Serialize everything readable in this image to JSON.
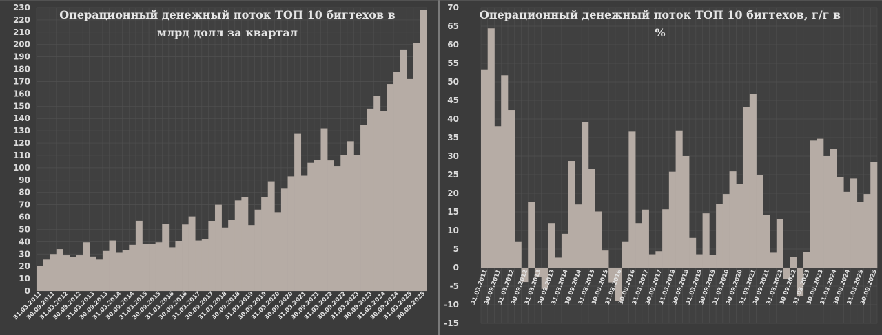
{
  "colors": {
    "background": "#3b3b3b",
    "plot_bg": "#404040",
    "grid": "#505050",
    "bar": "#b6aca5",
    "text": "#e2e2e2"
  },
  "chart_data": [
    {
      "type": "bar",
      "title_lines": [
        "Операционный денежный поток ТОП 10 бигтехов в",
        "млрд долл за квартал"
      ],
      "xlabel": "",
      "ylabel": "",
      "ylim": [
        0,
        230
      ],
      "ystep": 10,
      "grid": true,
      "legend": "none",
      "x_tick_labels": [
        "31.03.2011",
        "30.09.2011",
        "31.03.2012",
        "30.09.2012",
        "31.03.2013",
        "30.09.2013",
        "31.03.2014",
        "30.09.2014",
        "31.03.2015",
        "30.09.2015",
        "31.03.2016",
        "30.09.2016",
        "31.03.2017",
        "30.09.2017",
        "31.03.2018",
        "30.09.2018",
        "31.03.2019",
        "30.09.2019",
        "31.03.2020",
        "30.09.2020",
        "31.03.2021",
        "30.09.2021",
        "31.03.2022",
        "30.09.2022",
        "31.03.2023",
        "30.09.2023",
        "31.03.2024",
        "30.09.2024",
        "31.03.2025",
        "30.09.2025"
      ],
      "values": [
        20.5,
        25.5,
        30,
        34,
        29,
        27.5,
        29,
        39.5,
        28,
        25.5,
        32.5,
        41,
        31,
        33,
        37.5,
        57,
        38.5,
        38,
        39.5,
        54.5,
        35.5,
        40.5,
        54,
        60.5,
        41,
        42,
        56.5,
        70,
        51.5,
        57.5,
        73.5,
        76,
        53.5,
        66,
        76,
        89,
        64,
        83,
        93,
        127.5,
        93.5,
        104,
        106.5,
        132,
        106,
        101,
        110,
        121.5,
        110.5,
        135,
        148,
        158,
        146,
        168,
        178,
        196,
        172,
        201.5,
        228
      ]
    },
    {
      "type": "bar",
      "title_lines": [
        "Операционный денежный поток ТОП 10 бигтехов, г/г в",
        "%"
      ],
      "xlabel": "",
      "ylabel": "",
      "ylim": [
        -15,
        70
      ],
      "ystep": 5,
      "grid": true,
      "legend": "none",
      "x_tick_labels": [
        "31.03.2011",
        "30.09.2011",
        "31.03.2012",
        "30.09.2012",
        "31.03.2013",
        "30.09.2013",
        "31.03.2014",
        "30.09.2014",
        "31.03.2015",
        "30.09.2015",
        "31.03.2016",
        "30.09.2016",
        "31.03.2017",
        "30.09.2017",
        "31.03.2018",
        "30.09.2018",
        "31.03.2019",
        "30.09.2019",
        "31.03.2020",
        "30.09.2020",
        "31.03.2021",
        "30.09.2021",
        "31.03.2022",
        "30.09.2022",
        "31.03.2023",
        "30.09.2023",
        "31.03.2024",
        "30.09.2024",
        "31.03.2025",
        "30.09.2025"
      ],
      "values": [
        53.2,
        64.4,
        38.1,
        51.8,
        42.4,
        6.9,
        -3.9,
        17.6,
        -2.5,
        -5.7,
        12.0,
        2.7,
        9.1,
        28.7,
        17.0,
        39.2,
        26.5,
        15.1,
        4.6,
        -4.0,
        -9.0,
        6.9,
        36.6,
        12.0,
        15.6,
        3.6,
        4.4,
        15.7,
        25.8,
        36.9,
        30.0,
        8.0,
        3.6,
        14.6,
        3.4,
        17.2,
        19.8,
        25.9,
        22.5,
        43.2,
        46.8,
        25.0,
        14.2,
        4.0,
        13.0,
        -3.1,
        2.8,
        -7.7,
        4.2,
        34.2,
        34.7,
        30.0,
        31.9,
        24.4,
        20.4,
        24.0,
        17.7,
        19.8,
        28.4
      ]
    }
  ]
}
